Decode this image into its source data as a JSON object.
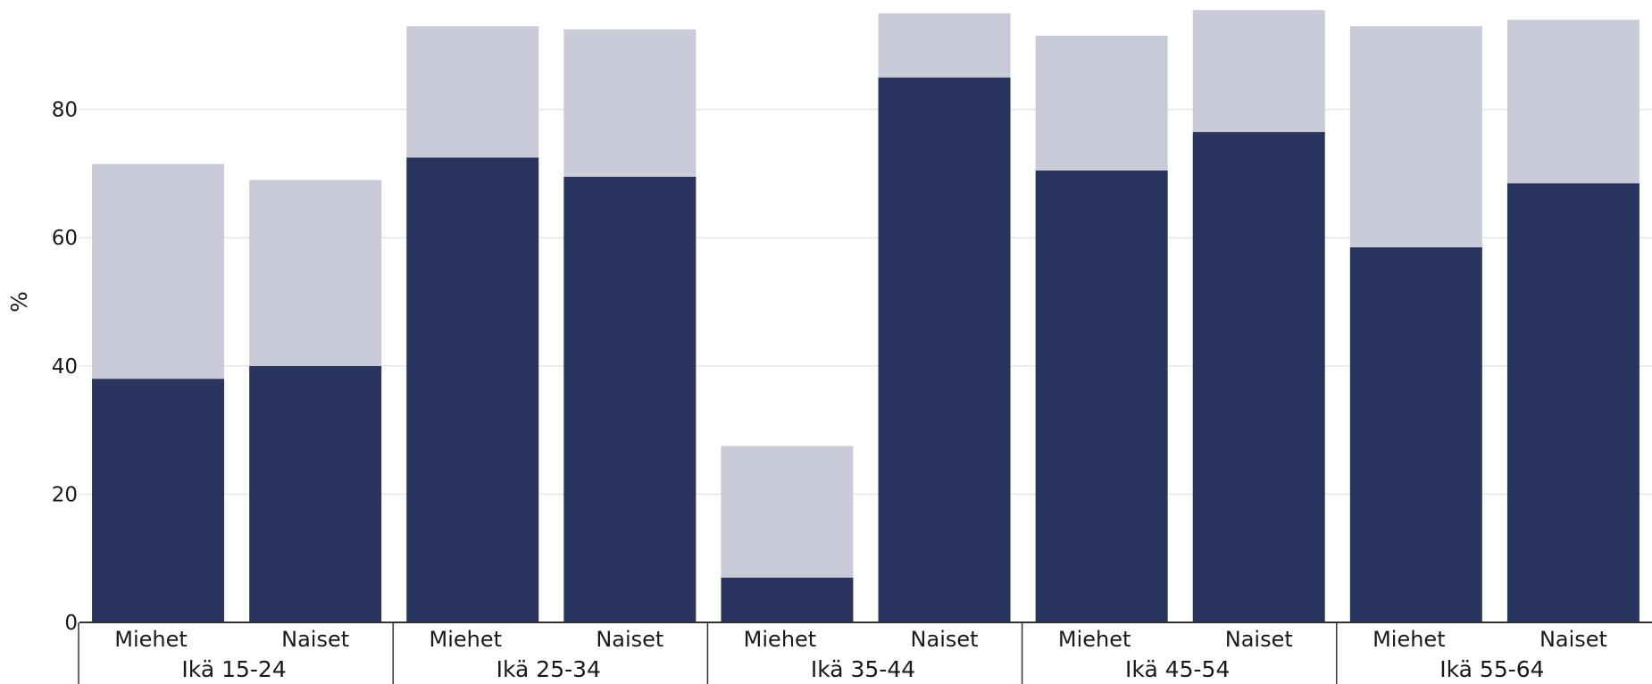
{
  "chart_data": {
    "type": "bar",
    "stacked": true,
    "ylabel": "%",
    "ylim": [
      0,
      95
    ],
    "yticks": [
      0,
      20,
      40,
      60,
      80
    ],
    "grid": true,
    "groups": [
      "Ikä 15-24",
      "Ikä 25-34",
      "Ikä 35-44",
      "Ikä 45-54",
      "Ikä 55-64"
    ],
    "categories": [
      "Miehet",
      "Naiset"
    ],
    "series": [
      {
        "color": "#29355f",
        "values": [
          [
            38,
            40
          ],
          [
            72.5,
            69.5
          ],
          [
            7,
            85
          ],
          [
            70.5,
            76.5
          ],
          [
            58.5,
            68.5
          ]
        ]
      },
      {
        "color": "#c9ccd8",
        "values": [
          [
            33.5,
            29
          ],
          [
            20.5,
            23
          ],
          [
            20.5,
            10
          ],
          [
            21,
            19
          ],
          [
            34.5,
            25.5
          ]
        ]
      }
    ]
  }
}
